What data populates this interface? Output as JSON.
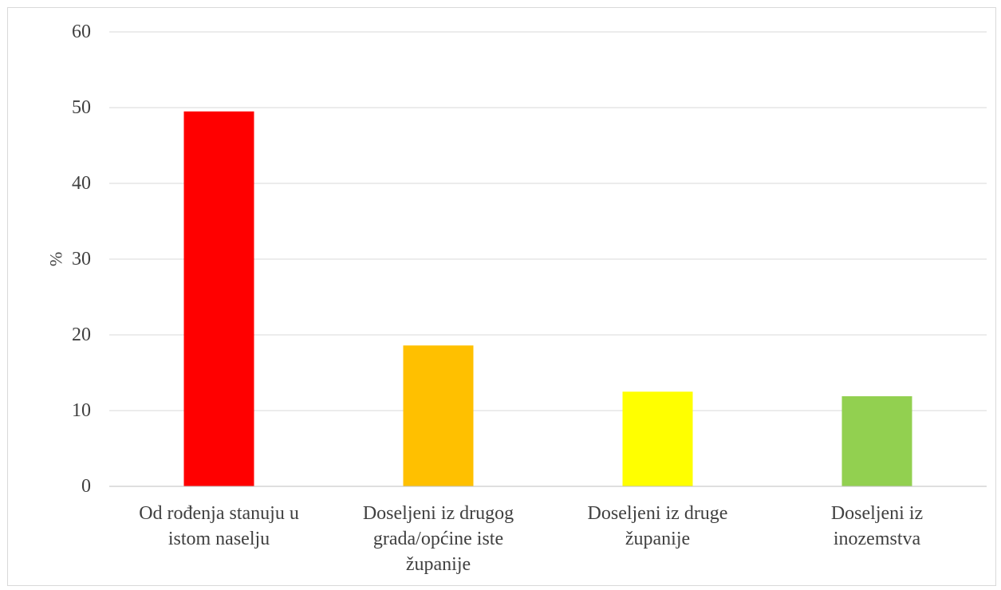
{
  "chart_data": {
    "type": "bar",
    "title": "",
    "xlabel": "",
    "ylabel": "%",
    "ylim": [
      0,
      60
    ],
    "yticks": [
      0,
      10,
      20,
      30,
      40,
      50,
      60
    ],
    "grid": true,
    "legend": "none",
    "categories": [
      [
        "Od rođenja stanuju u",
        "istom naselju"
      ],
      [
        "Doseljeni iz drugog",
        "grada/općine iste",
        "županije"
      ],
      [
        "Doseljeni iz druge",
        "županije"
      ],
      [
        "Doseljeni iz",
        "inozemstva"
      ]
    ],
    "values": [
      49.5,
      18.6,
      12.5,
      11.9
    ],
    "colors": [
      "#ff0000",
      "#ffc000",
      "#ffff00",
      "#92d050"
    ]
  }
}
